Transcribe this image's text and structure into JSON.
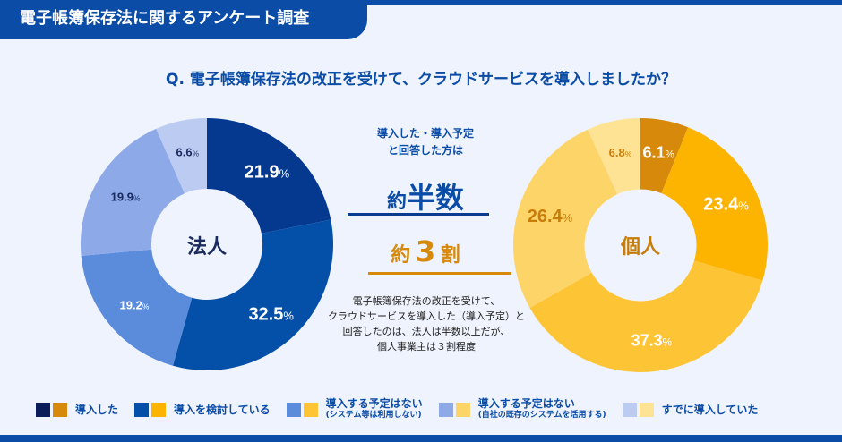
{
  "header": {
    "title": "電子帳簿保存法に関するアンケート調査"
  },
  "question": "Q. 電子帳簿保存法の改正を受けて、クラウドサービスを導入しましたか？",
  "middle": {
    "lead_line1": "導入した・導入予定",
    "lead_line2": "と回答した方は",
    "corp_prefix": "約",
    "corp_value": "半数",
    "indiv_prefix": "約",
    "indiv_value": "3",
    "indiv_suffix": "割",
    "note_line1": "電子帳簿保存法の改正を受けて、",
    "note_line2": "クラウドサービスを導入した（導入予定）と",
    "note_line3": "回答したのは、法人は半数以上だが、",
    "note_line4": "個人事業主は３割程度"
  },
  "legend": [
    {
      "label": "導入した",
      "sub": "",
      "colors": [
        "#0b1c5a",
        "#d6890b"
      ]
    },
    {
      "label": "導入を検討している",
      "sub": "",
      "colors": [
        "#0450a8",
        "#fdb400"
      ]
    },
    {
      "label": "導入する予定はない",
      "sub": "(システム等は利用しない)",
      "colors": [
        "#5b8bdb",
        "#fdc535"
      ]
    },
    {
      "label": "導入する予定はない",
      "sub": "(自社の既存のシステムを活用する)",
      "colors": [
        "#8ea9e8",
        "#fdd468"
      ]
    },
    {
      "label": "すでに導入していた",
      "sub": "",
      "colors": [
        "#bccbf2",
        "#fee394"
      ]
    }
  ],
  "chart_data": [
    {
      "type": "pie",
      "title": "法人",
      "categories": [
        "導入した",
        "導入を検討している",
        "導入する予定はない(システム等は利用しない)",
        "導入する予定はない(自社の既存のシステムを活用する)",
        "すでに導入していた"
      ],
      "values": [
        21.9,
        32.5,
        19.2,
        19.9,
        6.6
      ],
      "labels": [
        "21.9",
        "32.5",
        "19.2",
        "19.9",
        "6.6"
      ],
      "colors": [
        "#053990",
        "#0450a8",
        "#5b8bdb",
        "#8ea9e8",
        "#bccbf2"
      ],
      "label_colors": [
        "#ffffff",
        "#ffffff",
        "#ffffff",
        "#1a2a5e",
        "#1a2a5e"
      ],
      "center_color": "#1a2a5e",
      "unit": "%"
    },
    {
      "type": "pie",
      "title": "個人",
      "categories": [
        "導入した",
        "導入を検討している",
        "導入する予定はない(システム等は利用しない)",
        "導入する予定はない(自社の既存のシステムを活用する)",
        "すでに導入していた"
      ],
      "values": [
        6.1,
        23.4,
        37.3,
        26.4,
        6.8
      ],
      "labels": [
        "6.1",
        "23.4",
        "37.3",
        "26.4",
        "6.8"
      ],
      "colors": [
        "#d6890b",
        "#fdb400",
        "#fdc535",
        "#fdd468",
        "#fee394"
      ],
      "label_colors": [
        "#ffffff",
        "#ffffff",
        "#ffffff",
        "#c77d0a",
        "#c77d0a"
      ],
      "center_color": "#c77d0a",
      "unit": "%"
    }
  ]
}
